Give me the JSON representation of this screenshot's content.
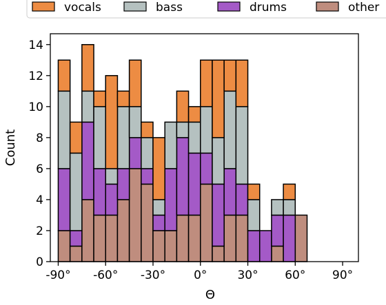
{
  "chart_data": {
    "type": "bar",
    "stacked": true,
    "xlabel": "Θ",
    "ylabel": "Count",
    "x_ticks": [
      {
        "value": -90,
        "label": "-90°"
      },
      {
        "value": -60,
        "label": "-60°"
      },
      {
        "value": -30,
        "label": "-30°"
      },
      {
        "value": 0,
        "label": "0°"
      },
      {
        "value": 30,
        "label": "30°"
      },
      {
        "value": 60,
        "label": "60°"
      },
      {
        "value": 90,
        "label": "90°"
      }
    ],
    "y_ticks": [
      0,
      2,
      4,
      6,
      8,
      10,
      12,
      14
    ],
    "xlim": [
      -95,
      100
    ],
    "ylim": [
      0,
      14.7
    ],
    "bin_width": 7.5,
    "bin_starts": [
      -90,
      -82.5,
      -75,
      -67.5,
      -60,
      -52.5,
      -45,
      -37.5,
      -30,
      -22.5,
      -15,
      -7.5,
      0,
      7.5,
      15,
      22.5,
      30,
      37.5,
      45,
      52.5,
      60,
      67.5,
      75,
      82.5,
      90
    ],
    "legend": {
      "placement": "top",
      "columns": 4
    },
    "series": [
      {
        "name": "other",
        "color": "#bf8d7e",
        "values": [
          2,
          1,
          4,
          3,
          3,
          4,
          6,
          5,
          2,
          2,
          3,
          3,
          5,
          1,
          3,
          3,
          0,
          0,
          1,
          0,
          3,
          0,
          0,
          0,
          0
        ]
      },
      {
        "name": "drums",
        "color": "#a45ac7",
        "values": [
          4,
          1,
          5,
          3,
          2,
          2,
          2,
          1,
          1,
          4,
          5,
          4,
          2,
          4,
          3,
          2,
          2,
          2,
          2,
          3,
          0,
          0,
          0,
          0,
          0
        ]
      },
      {
        "name": "bass",
        "color": "#b5c1c0",
        "values": [
          5,
          5,
          2,
          4,
          1,
          4,
          2,
          2,
          1,
          3,
          1,
          2,
          3,
          3,
          5,
          5,
          2,
          0,
          1,
          1,
          0,
          0,
          0,
          0,
          0
        ]
      },
      {
        "name": "vocals",
        "color": "#ed8c43",
        "values": [
          2,
          2,
          3,
          1,
          6,
          1,
          3,
          1,
          4,
          0,
          2,
          1,
          3,
          5,
          2,
          3,
          1,
          0,
          0,
          1,
          0,
          0,
          0,
          0,
          0
        ]
      }
    ]
  }
}
